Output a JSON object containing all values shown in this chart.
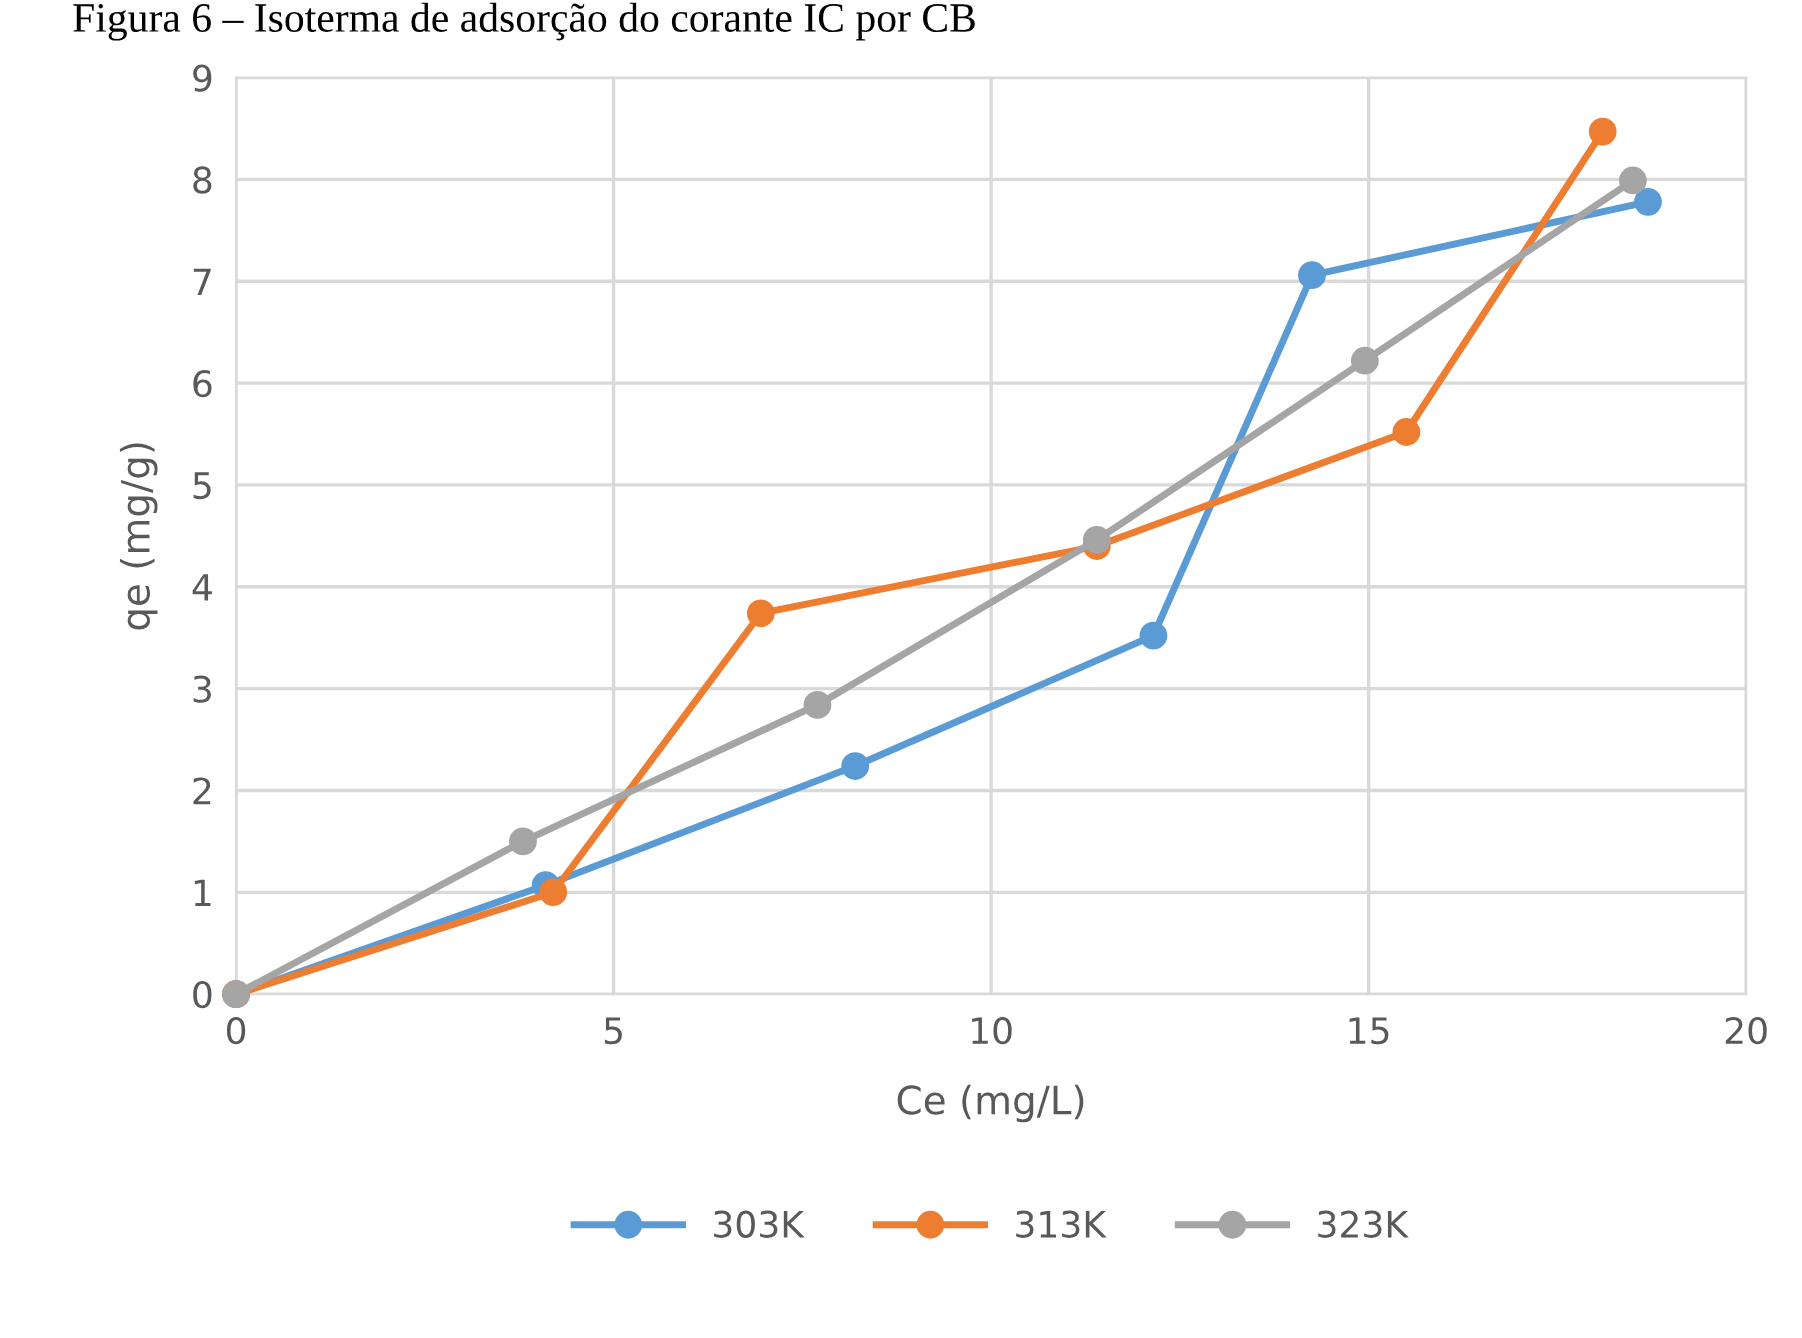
{
  "chart_data": {
    "type": "line",
    "title": "Figura 6 – Isoterma de adsorção do corante IC por CB",
    "xlabel": "Ce (mg/L)",
    "ylabel": "qe (mg/g)",
    "xlim": [
      0,
      20
    ],
    "xticks": [
      0,
      5,
      10,
      15,
      20
    ],
    "ylim": [
      0,
      9
    ],
    "yticks": [
      0,
      1,
      2,
      3,
      4,
      5,
      6,
      7,
      8,
      9
    ],
    "grid": true,
    "legend": "bottom",
    "marker": "circle",
    "line_style": "solid",
    "series": [
      {
        "name": "303K",
        "color": "#5b9bd5",
        "x": [
          0,
          4.1,
          8.2,
          12.15,
          14.25,
          18.7
        ],
        "values": [
          0,
          1.07,
          2.24,
          3.52,
          7.06,
          7.78
        ]
      },
      {
        "name": "313K",
        "color": "#ed7d31",
        "x": [
          0,
          4.2,
          6.95,
          11.4,
          15.5,
          18.1
        ],
        "values": [
          0,
          1.0,
          3.74,
          4.4,
          5.52,
          8.47
        ]
      },
      {
        "name": "323K",
        "color": "#a5a5a5",
        "x": [
          0,
          3.8,
          7.7,
          11.4,
          14.95,
          18.5
        ],
        "values": [
          0,
          1.5,
          2.84,
          4.46,
          6.22,
          7.99
        ]
      }
    ]
  }
}
